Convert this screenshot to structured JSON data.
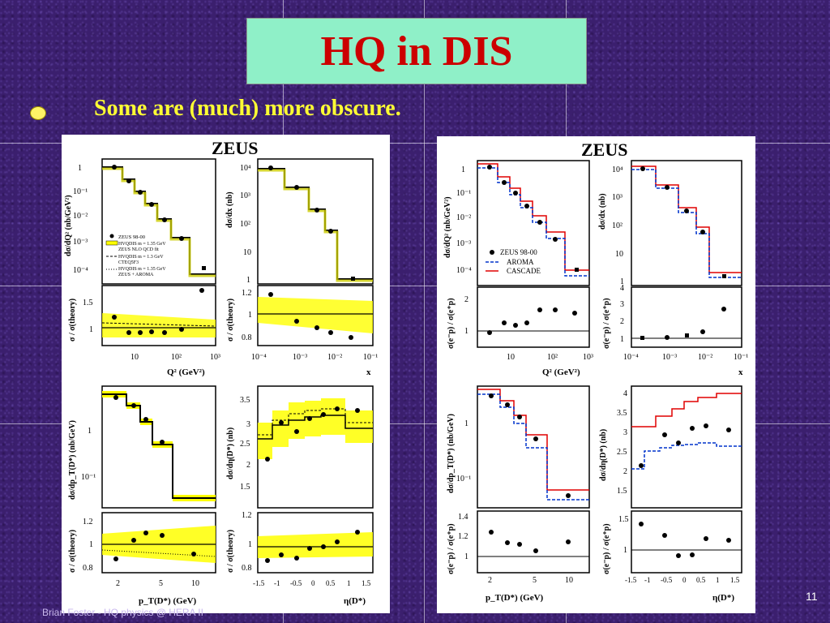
{
  "slide": {
    "title": "HQ in DIS",
    "bullet": "Some are (much) more obscure.",
    "footer": "Brian Foster - HQ physics @ HERA II",
    "page_number": "11",
    "colors": {
      "background": "#3b1f6e",
      "title_box": "#8ff0c8",
      "title_text": "#cc0000",
      "bullet_text": "#ffff33"
    }
  },
  "left_figure": {
    "header": "ZEUS",
    "legend": [
      "ZEUS 98-00",
      "HVQDIS m = 1.35 GeV",
      "ZEUS NLO QCD fit",
      "HVQDIS m = 1.3 GeV",
      "CTEQ5F3",
      "HVQDIS m = 1.35 GeV",
      "ZEUS + AROMA"
    ],
    "q2_panel": {
      "ylabel": "dσ/dQ² (nb/GeV²)",
      "xlabel": "Q² (GeV²)",
      "yticks": [
        "1",
        "10⁻¹",
        "10⁻²",
        "10⁻³",
        "10⁻⁴"
      ],
      "xticks": [
        "10",
        "10²",
        "10³"
      ]
    },
    "x_panel": {
      "ylabel": "dσ/dx (nb)",
      "xlabel": "x",
      "yticks": [
        "10⁴",
        "10³",
        "10²",
        "10",
        "1"
      ],
      "xticks": [
        "10⁻⁴",
        "10⁻³",
        "10⁻²",
        "10⁻¹"
      ]
    },
    "ratio_q2": {
      "ylabel": "σ / σ(theory)",
      "yticks": [
        "1.5",
        "1"
      ]
    },
    "ratio_x": {
      "ylabel": "σ / σ(theory)",
      "yticks": [
        "1.2",
        "1",
        "0.8"
      ]
    },
    "pt_panel": {
      "ylabel": "dσ/dp_T(D*) (nb/GeV)",
      "yticks": [
        "1",
        "10⁻¹"
      ]
    },
    "eta_panel": {
      "ylabel": "dσ/dη(D*) (nb)",
      "yticks": [
        "3.5",
        "3",
        "2.5",
        "2",
        "1.5"
      ]
    },
    "ratio_pt": {
      "ylabel": "σ / σ(theory)",
      "xlabel": "p_T(D*) (GeV)",
      "yticks": [
        "1.2",
        "1",
        "0.8"
      ],
      "xticks": [
        "2",
        "5",
        "10"
      ]
    },
    "ratio_eta": {
      "ylabel": "σ / σ(theory)",
      "xlabel": "η(D*)",
      "yticks": [
        "1.2",
        "1",
        "0.8"
      ],
      "xticks": [
        "-1.5",
        "-1",
        "-0.5",
        "0",
        "0.5",
        "1",
        "1.5"
      ]
    }
  },
  "right_figure": {
    "header": "ZEUS",
    "legend": [
      "ZEUS 98-00",
      "AROMA",
      "CASCADE"
    ],
    "q2_panel": {
      "ylabel": "dσ/dQ² (nb/GeV²)",
      "xlabel": "Q² (GeV²)",
      "yticks": [
        "1",
        "10⁻¹",
        "10⁻²",
        "10⁻³",
        "10⁻⁴"
      ],
      "xticks": [
        "10",
        "10²",
        "10³"
      ]
    },
    "x_panel": {
      "ylabel": "dσ/dx (nb)",
      "xlabel": "x",
      "yticks": [
        "10⁴",
        "10³",
        "10²",
        "10",
        "1"
      ],
      "xticks": [
        "10⁻⁴",
        "10⁻³",
        "10⁻²",
        "10⁻¹"
      ]
    },
    "ratio_q2": {
      "ylabel": "σ(e⁻p) / σ(e⁺p)",
      "yticks": [
        "2",
        "1"
      ]
    },
    "ratio_x": {
      "ylabel": "σ(e⁻p) / σ(e⁺p)",
      "yticks": [
        "4",
        "3",
        "2",
        "1"
      ]
    },
    "pt_panel": {
      "ylabel": "dσ/dp_T(D*) (nb/GeV)",
      "yticks": [
        "1",
        "10⁻¹"
      ]
    },
    "eta_panel": {
      "ylabel": "dσ/dη(D*) (nb)",
      "yticks": [
        "4",
        "3.5",
        "3",
        "2.5",
        "2",
        "1.5"
      ]
    },
    "ratio_pt": {
      "ylabel": "σ(e⁻p) / σ(e⁺p)",
      "xlabel": "p_T(D*) (GeV)",
      "yticks": [
        "1.4",
        "1.2",
        "1"
      ],
      "xticks": [
        "2",
        "5",
        "10"
      ]
    },
    "ratio_eta": {
      "ylabel": "σ(e⁻p) / σ(e⁺p)",
      "xlabel": "η(D*)",
      "yticks": [
        "1.5",
        "1"
      ],
      "xticks": [
        "-1.5",
        "-1",
        "-0.5",
        "0",
        "0.5",
        "1",
        "1.5"
      ]
    }
  }
}
